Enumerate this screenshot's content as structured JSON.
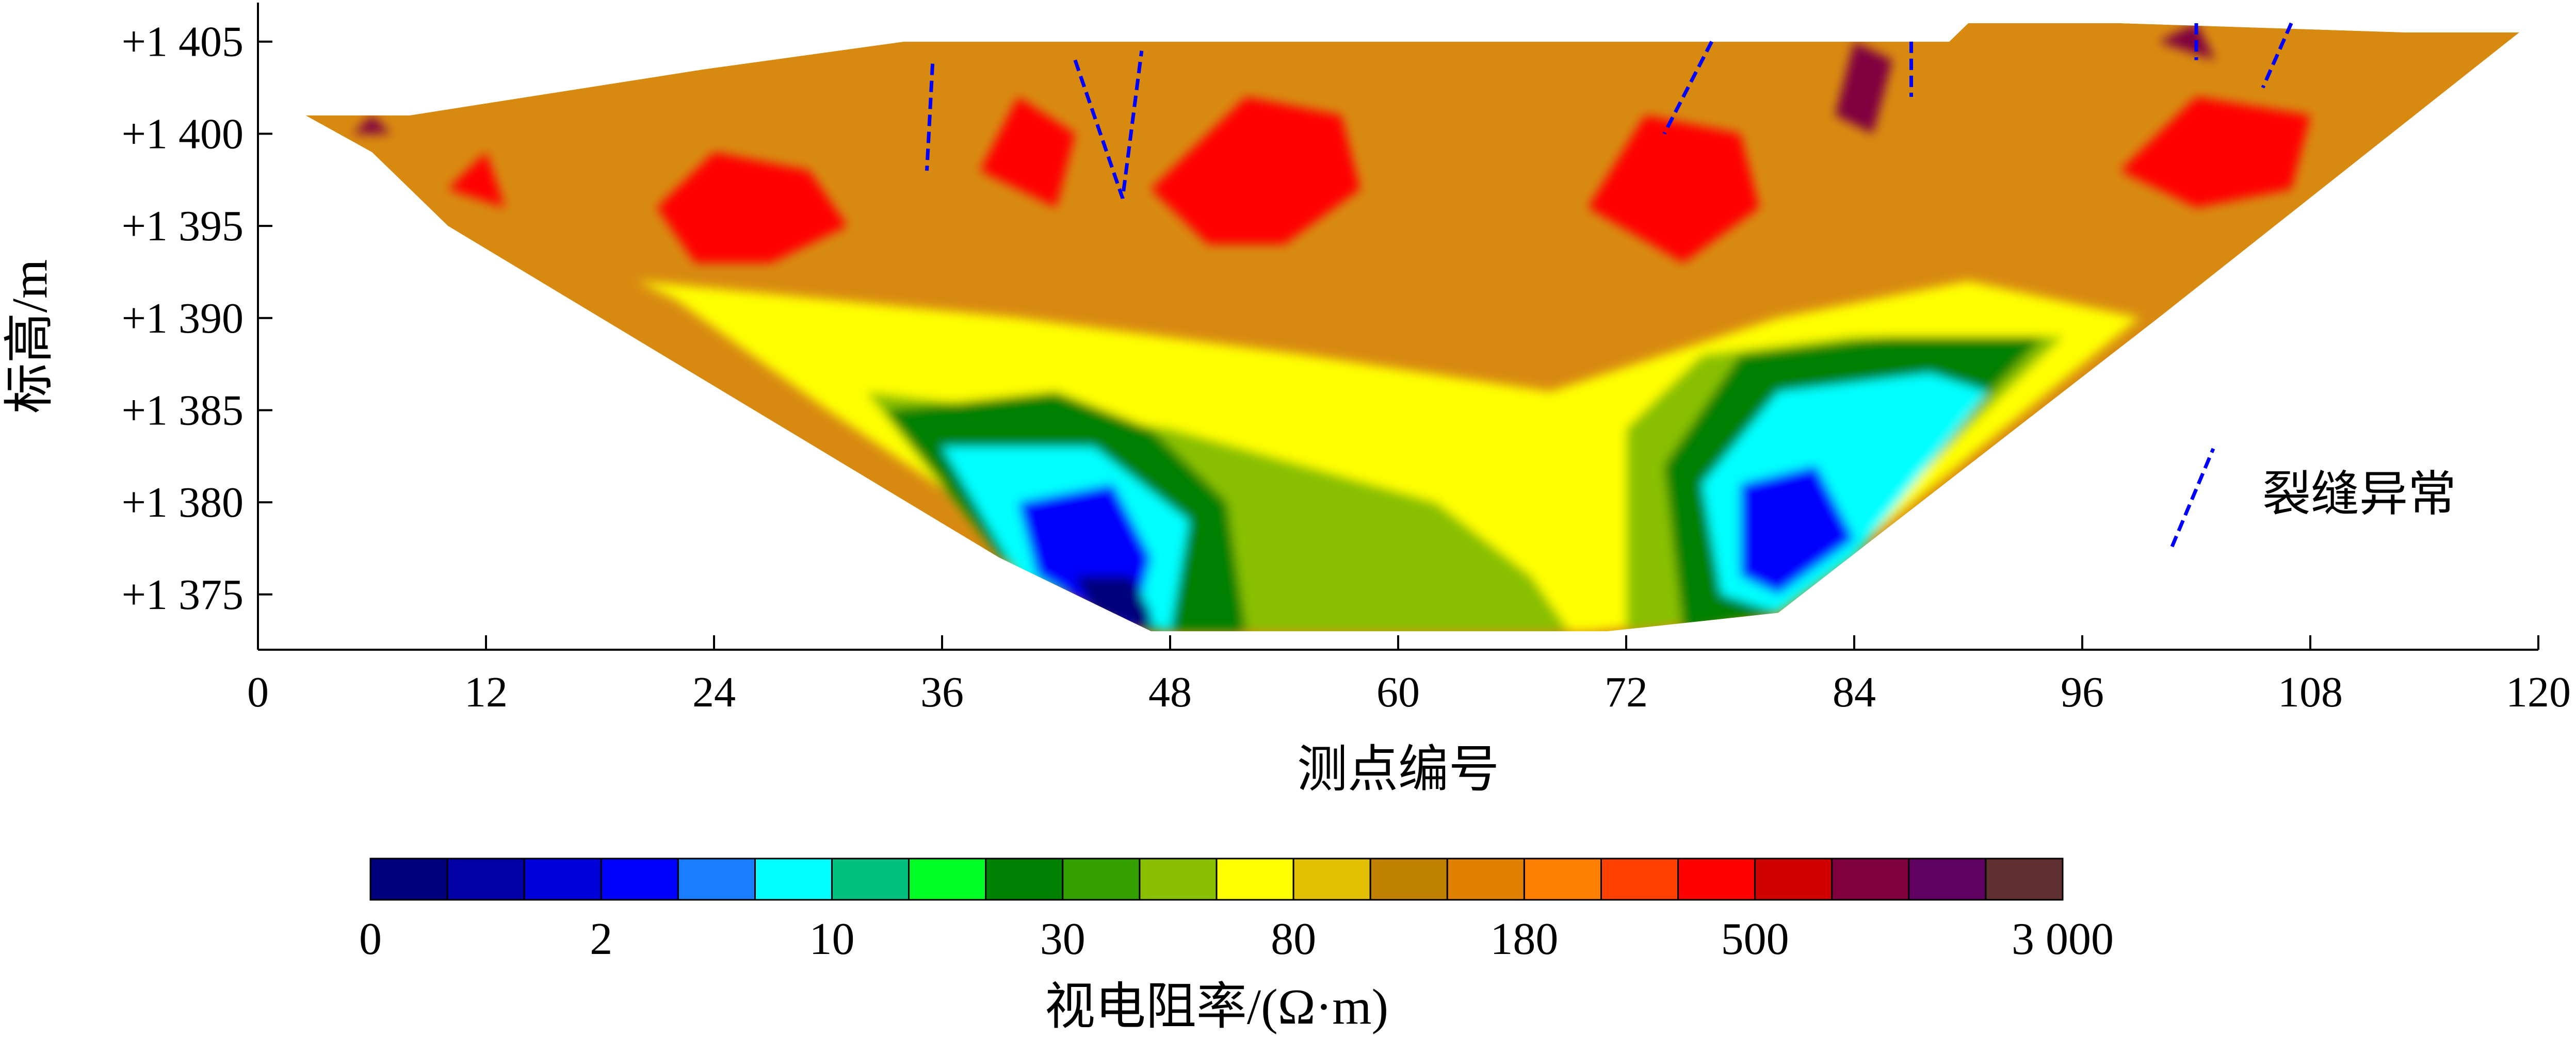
{
  "chart_data": {
    "type": "heatmap",
    "title": "",
    "xlabel": "测点编号",
    "ylabel": "标高/m",
    "xlim": [
      0,
      120
    ],
    "ylim": [
      1372,
      1406
    ],
    "x_ticks": [
      0,
      12,
      24,
      36,
      48,
      60,
      72,
      84,
      96,
      108,
      120
    ],
    "x_tick_labels": [
      "0",
      "12",
      "24",
      "36",
      "48",
      "60",
      "72",
      "84",
      "96",
      "108",
      "120"
    ],
    "y_ticks": [
      1405,
      1400,
      1395,
      1390,
      1385,
      1380,
      1375
    ],
    "y_tick_labels": [
      "+1 405",
      "+1 400",
      "+1 395",
      "+1 390",
      "+1 385",
      "+1 380",
      "+1 375"
    ],
    "section_outline": [
      [
        2.5,
        1401
      ],
      [
        8,
        1401
      ],
      [
        23.5,
        1403.5
      ],
      [
        34,
        1405
      ],
      [
        89,
        1405
      ],
      [
        90,
        1406
      ],
      [
        98,
        1406
      ],
      [
        113,
        1405.5
      ],
      [
        119,
        1405.5
      ],
      [
        100,
        1390
      ],
      [
        80,
        1374
      ],
      [
        71,
        1373
      ],
      [
        47,
        1373
      ],
      [
        39,
        1377
      ],
      [
        10,
        1395
      ],
      [
        6,
        1399
      ]
    ],
    "resistivity_regions": [
      {
        "level": "80-120",
        "polygon": [
          [
            20,
            1392
          ],
          [
            40,
            1390
          ],
          [
            55,
            1388
          ],
          [
            68,
            1386
          ],
          [
            80,
            1390
          ],
          [
            90,
            1392
          ],
          [
            99,
            1390
          ],
          [
            80,
            1374
          ],
          [
            70,
            1373
          ],
          [
            60,
            1373
          ],
          [
            47,
            1373
          ],
          [
            30,
            1385
          ],
          [
            22,
            1391
          ]
        ]
      },
      {
        "level": "40-80",
        "polygon": [
          [
            32,
            1386
          ],
          [
            40,
            1385
          ],
          [
            48,
            1384
          ],
          [
            55,
            1382
          ],
          [
            62,
            1380
          ],
          [
            67,
            1376
          ],
          [
            69,
            1373
          ],
          [
            47,
            1373
          ],
          [
            39,
            1377
          ]
        ]
      },
      {
        "level": "40-80",
        "polygon": [
          [
            72,
            1373
          ],
          [
            72,
            1384
          ],
          [
            76,
            1388
          ],
          [
            84,
            1389
          ],
          [
            95,
            1389
          ],
          [
            80,
            1374
          ]
        ]
      },
      {
        "level": "20-30",
        "polygon": [
          [
            33,
            1385
          ],
          [
            42,
            1386
          ],
          [
            47,
            1384
          ],
          [
            51,
            1380
          ],
          [
            52,
            1373
          ],
          [
            47,
            1373
          ],
          [
            39,
            1377
          ]
        ]
      },
      {
        "level": "20-30",
        "polygon": [
          [
            75,
            1373
          ],
          [
            74,
            1382
          ],
          [
            78,
            1388
          ],
          [
            86,
            1389
          ],
          [
            94,
            1389
          ],
          [
            80,
            1374
          ]
        ]
      },
      {
        "level": "10-15",
        "polygon": [
          [
            36,
            1383
          ],
          [
            44,
            1383
          ],
          [
            49,
            1379
          ],
          [
            48,
            1373
          ],
          [
            40,
            1376
          ]
        ]
      },
      {
        "level": "10-15",
        "polygon": [
          [
            77,
            1375
          ],
          [
            76,
            1381
          ],
          [
            80,
            1386
          ],
          [
            88,
            1387
          ],
          [
            91,
            1386
          ],
          [
            84,
            1377
          ],
          [
            80,
            1374
          ]
        ]
      },
      {
        "level": "3-6",
        "polygon": [
          [
            40,
            1380
          ],
          [
            45,
            1381
          ],
          [
            47,
            1377
          ],
          [
            46,
            1373
          ],
          [
            41,
            1376
          ]
        ]
      },
      {
        "level": "3-6",
        "polygon": [
          [
            78,
            1376
          ],
          [
            78,
            1381
          ],
          [
            82,
            1382
          ],
          [
            84,
            1378
          ],
          [
            80,
            1375
          ]
        ]
      },
      {
        "level": "0-1",
        "polygon": [
          [
            43,
            1376
          ],
          [
            46,
            1376
          ],
          [
            47,
            1374
          ],
          [
            47,
            1373
          ],
          [
            44,
            1374
          ]
        ]
      },
      {
        "level": "300-500",
        "polygon": [
          [
            21,
            1396
          ],
          [
            24,
            1399
          ],
          [
            29,
            1398
          ],
          [
            31,
            1395
          ],
          [
            27,
            1393
          ],
          [
            23,
            1393
          ]
        ]
      },
      {
        "level": "300-500",
        "polygon": [
          [
            47,
            1397
          ],
          [
            52,
            1402
          ],
          [
            57,
            1401
          ],
          [
            58,
            1397
          ],
          [
            54,
            1394
          ],
          [
            50,
            1394
          ]
        ]
      },
      {
        "level": "300-500",
        "polygon": [
          [
            38,
            1398
          ],
          [
            40,
            1402
          ],
          [
            43,
            1400
          ],
          [
            42,
            1396
          ]
        ]
      },
      {
        "level": "300-500",
        "polygon": [
          [
            70,
            1396
          ],
          [
            73,
            1401
          ],
          [
            78,
            1400
          ],
          [
            79,
            1396
          ],
          [
            75,
            1393
          ]
        ]
      },
      {
        "level": "300-500",
        "polygon": [
          [
            98,
            1398
          ],
          [
            102,
            1402
          ],
          [
            108,
            1401
          ],
          [
            107,
            1397
          ],
          [
            102,
            1396
          ]
        ]
      },
      {
        "level": "300-500",
        "polygon": [
          [
            10,
            1397
          ],
          [
            12,
            1399
          ],
          [
            13,
            1396
          ]
        ]
      },
      {
        "level": "1500-3000",
        "polygon": [
          [
            83,
            1401
          ],
          [
            84,
            1405
          ],
          [
            86,
            1404
          ],
          [
            85,
            1400
          ]
        ]
      },
      {
        "level": "1500-3000",
        "polygon": [
          [
            5,
            1400
          ],
          [
            6,
            1401
          ],
          [
            7,
            1400
          ]
        ]
      },
      {
        "level": "1500-3000",
        "polygon": [
          [
            100,
            1405
          ],
          [
            102,
            1406
          ],
          [
            103,
            1404
          ]
        ]
      }
    ],
    "fracture_anomalies": [
      [
        [
          35.5,
          1403.8
        ],
        [
          35.2,
          1398
        ]
      ],
      [
        [
          43,
          1404
        ],
        [
          44.5,
          1399.5
        ],
        [
          45.5,
          1396.5
        ],
        [
          46.5,
          1404.5
        ]
      ],
      [
        [
          76.5,
          1405
        ],
        [
          74,
          1400
        ]
      ],
      [
        [
          87,
          1405
        ],
        [
          87,
          1402
        ]
      ],
      [
        [
          107,
          1406
        ],
        [
          105.5,
          1402.5
        ]
      ],
      [
        [
          102,
          1406
        ],
        [
          102,
          1404
        ]
      ]
    ],
    "legend": {
      "position": "right",
      "label": "裂缝异常"
    },
    "colorbar": {
      "title": "视电阻率/(Ω·m)",
      "labels": [
        "0",
        "2",
        "10",
        "30",
        "80",
        "180",
        "500",
        "3 000"
      ],
      "colors": [
        "#00007c",
        "#0000a6",
        "#0000d8",
        "#0000ff",
        "#1a7dff",
        "#00ffff",
        "#00c080",
        "#00ff24",
        "#008000",
        "#33a000",
        "#88c000",
        "#ffff00",
        "#e0c000",
        "#c08000",
        "#e08000",
        "#ff8000",
        "#ff4000",
        "#ff0000",
        "#d00000",
        "#800040",
        "#600060",
        "#603030"
      ]
    }
  }
}
